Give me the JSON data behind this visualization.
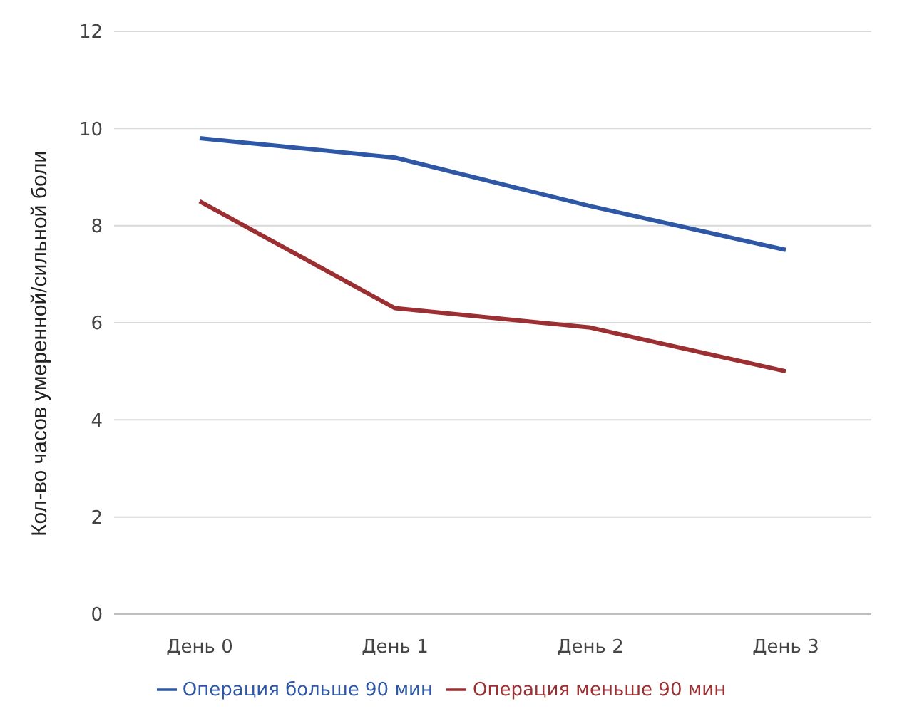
{
  "chart_data": {
    "type": "line",
    "ylabel": "Кол-во часов умеренной/сильной боли",
    "categories": [
      "День 0",
      "День 1",
      "День 2",
      "День 3"
    ],
    "series": [
      {
        "name": "Операция больше 90 мин",
        "color": "#2e58a6",
        "values": [
          9.8,
          9.4,
          8.4,
          7.5
        ]
      },
      {
        "name": "Операция меньше 90 мин",
        "color": "#9b2f32",
        "values": [
          8.5,
          6.3,
          5.9,
          5.0
        ]
      }
    ],
    "ylim": [
      0,
      12
    ],
    "yticks": [
      0,
      2,
      4,
      6,
      8,
      10,
      12
    ],
    "grid": "y",
    "legend": "bottom",
    "marker": "none",
    "line_style": "solid"
  }
}
